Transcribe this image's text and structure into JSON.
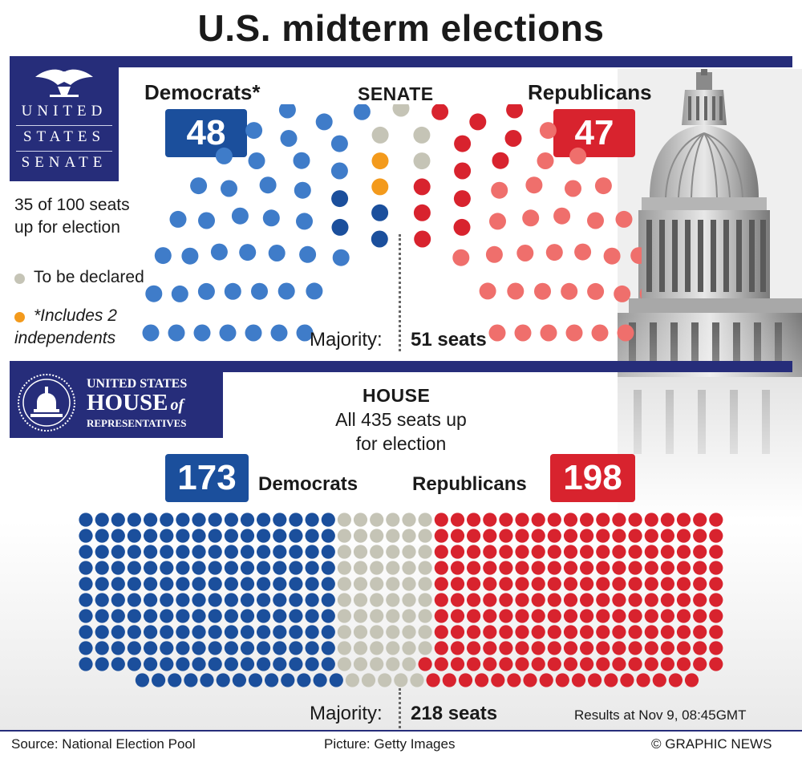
{
  "title": "U.S. midterm elections",
  "colors": {
    "democrat_light": "#3f7cc9",
    "democrat_dark": "#1b4f9c",
    "republican_light": "#ef6f6c",
    "republican_dark": "#d8232e",
    "undeclared": "#c5c4b6",
    "independent": "#f39a1c",
    "navy_band": "#262d7a"
  },
  "senate_logo": {
    "line1": "UNITED",
    "line2": "STATES",
    "line3": "SENATE"
  },
  "house_logo": {
    "line1": "UNITED STATES",
    "line2": "HOUSE",
    "line2_italic": "of",
    "line3": "REPRESENTATIVES"
  },
  "senate": {
    "heading": "SENATE",
    "dem_label": "Democrats*",
    "dem_count": "48",
    "rep_label": "Republicans",
    "rep_count": "47",
    "seats_note_line1": "35 of 100 seats",
    "seats_note_line2": "up for election",
    "majority_label": "Majority:",
    "majority_value": "51 seats"
  },
  "legend": {
    "undeclared": "To be declared",
    "independent_line1": "*Includes 2",
    "independent_line2": "independents"
  },
  "house": {
    "heading": "HOUSE",
    "sub_line1": "All 435 seats up",
    "sub_line2": "for election",
    "dem_label": "Democrats",
    "dem_count": "173",
    "rep_label": "Republicans",
    "rep_count": "198",
    "majority_label": "Majority:",
    "majority_value": "218 seats",
    "timestamp": "Results at Nov 9, 08:45GMT"
  },
  "footer": {
    "source": "Source: National Election Pool",
    "picture": "Picture: Getty Images",
    "credit": "© GRAPHIC NEWS"
  },
  "chart_data": [
    {
      "type": "parliament",
      "chamber": "Senate",
      "total_seats": 100,
      "majority": 51,
      "series": [
        {
          "name": "Democrats*",
          "values": [
            46
          ]
        },
        {
          "name": "*Includes 2 independents",
          "values": [
            2
          ]
        },
        {
          "name": "To be declared",
          "values": [
            5
          ]
        },
        {
          "name": "Republicans",
          "values": [
            47
          ]
        }
      ],
      "seats_up_for_election": 35
    },
    {
      "type": "parliament",
      "chamber": "House",
      "total_seats": 435,
      "majority": 218,
      "series": [
        {
          "name": "Democrats",
          "values": [
            173
          ]
        },
        {
          "name": "To be declared",
          "values": [
            64
          ]
        },
        {
          "name": "Republicans",
          "values": [
            198
          ]
        }
      ]
    }
  ]
}
